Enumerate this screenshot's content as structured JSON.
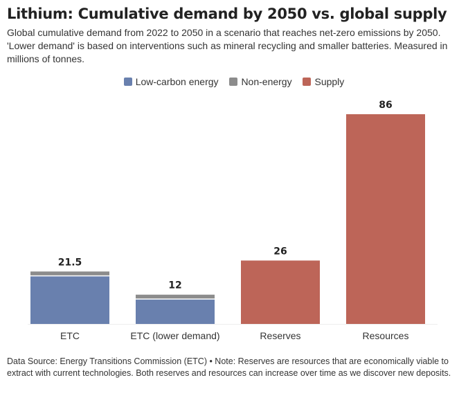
{
  "title": "Lithium: Cumulative demand by 2050 vs. global supply",
  "subtitle": "Global cumulative demand from 2022 to 2050 in a scenario that reaches net-zero emissions by 2050. 'Lower demand' is based on interventions such as mineral recycling and smaller batteries. Measured in millions of tonnes.",
  "legend": [
    {
      "label": "Low-carbon energy",
      "color": "#6980ae"
    },
    {
      "label": "Non-energy",
      "color": "#8c8c8c"
    },
    {
      "label": "Supply",
      "color": "#bd6558"
    }
  ],
  "chart_data": {
    "type": "bar",
    "stacked": true,
    "categories": [
      "ETC",
      "ETC (lower demand)",
      "Reserves",
      "Resources"
    ],
    "series": [
      {
        "name": "Low-carbon energy",
        "color": "#6980ae",
        "values": [
          19.5,
          10,
          null,
          null
        ]
      },
      {
        "name": "Non-energy",
        "color": "#8c8c8c",
        "values": [
          2,
          2,
          null,
          null
        ]
      },
      {
        "name": "Supply",
        "color": "#bd6558",
        "values": [
          null,
          null,
          26,
          86
        ]
      }
    ],
    "totals_labels": [
      "21.5",
      "12",
      "26",
      "86"
    ],
    "ylim": [
      0,
      86
    ],
    "grid": false,
    "legend_position": "top"
  },
  "footer": "Data Source: Energy Transitions Commission (ETC) • Note: Reserves are resources that are economically viable to extract with current technologies. Both reserves and resources can increase over time as we discover new deposits."
}
